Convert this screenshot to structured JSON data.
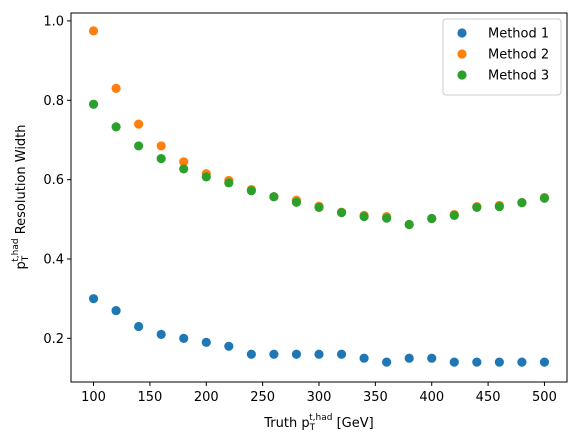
{
  "chart_data": {
    "type": "scatter",
    "xlabel": {
      "prefix": "Truth p",
      "sub": "T",
      "sup": "t,had",
      "suffix": " [GeV]"
    },
    "ylabel": {
      "prefix": "p",
      "sub": "T",
      "sup": "t,had",
      "suffix": " Resolution Width"
    },
    "xlim": [
      80,
      520
    ],
    "ylim": [
      0.09,
      1.02
    ],
    "xticks": [
      100,
      150,
      200,
      250,
      300,
      350,
      400,
      450,
      500
    ],
    "yticks": [
      0.2,
      0.4,
      0.6,
      0.8,
      1.0
    ],
    "ytick_labels": [
      "0.2",
      "0.4",
      "0.6",
      "0.8",
      "1.0"
    ],
    "x": [
      100,
      120,
      140,
      160,
      180,
      200,
      220,
      240,
      260,
      280,
      300,
      320,
      340,
      360,
      380,
      400,
      420,
      440,
      460,
      480,
      500
    ],
    "series": [
      {
        "name": "Method 1",
        "color": "#1f77b4",
        "values": [
          0.3,
          0.27,
          0.23,
          0.21,
          0.2,
          0.19,
          0.18,
          0.16,
          0.16,
          0.16,
          0.16,
          0.16,
          0.15,
          0.14,
          0.15,
          0.15,
          0.14,
          0.14,
          0.14,
          0.14,
          0.14
        ]
      },
      {
        "name": "Method 2",
        "color": "#ff7f0e",
        "values": [
          0.975,
          0.83,
          0.74,
          0.685,
          0.645,
          0.615,
          0.598,
          0.575,
          0.557,
          0.548,
          0.533,
          0.518,
          0.51,
          0.507,
          0.487,
          0.502,
          0.512,
          0.532,
          0.535,
          0.542,
          0.555
        ]
      },
      {
        "name": "Method 3",
        "color": "#2ca02c",
        "values": [
          0.79,
          0.733,
          0.685,
          0.653,
          0.627,
          0.607,
          0.592,
          0.572,
          0.557,
          0.543,
          0.53,
          0.517,
          0.507,
          0.503,
          0.487,
          0.502,
          0.51,
          0.53,
          0.532,
          0.542,
          0.553
        ]
      }
    ],
    "legend": {
      "position": "top-right"
    },
    "grid": false
  }
}
